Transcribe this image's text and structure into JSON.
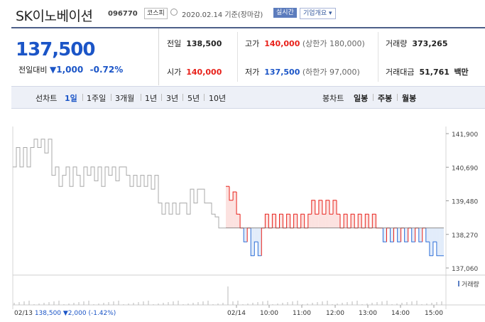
{
  "stock": {
    "name": "SK이노베이션",
    "code": "096770",
    "market": "코스피",
    "date": "2020.02.14 기준(장마감)",
    "live_label": "실시간",
    "corp_info_label": "기업개요 ▾"
  },
  "price": {
    "current": "137,500",
    "change_label": "전일대비",
    "change": "▼1,000",
    "change_pct": "-0.72%"
  },
  "info": {
    "prev_close_label": "전일",
    "prev_close": "138,500",
    "high_label": "고가",
    "high": "140,000",
    "upper_limit": "(상한가 180,000)",
    "volume_label": "거래량",
    "volume": "373,265",
    "open_label": "시가",
    "open": "140,000",
    "low_label": "저가",
    "low": "137,500",
    "lower_limit": "(하한가 97,000)",
    "value_label": "거래대금",
    "value": "51,761",
    "value_unit": "백만"
  },
  "period_tabs": {
    "label": "선차트",
    "items": [
      "1일",
      "1주일",
      "3개월",
      "1년",
      "3년",
      "5년",
      "10년"
    ],
    "active": "1일"
  },
  "candle_tabs": {
    "label": "봉차트",
    "items": [
      "일봉",
      "주봉",
      "월봉"
    ]
  },
  "chart_data": {
    "type": "line",
    "base_price": 138500,
    "ylim": [
      137060,
      141900
    ],
    "y_ticks": [
      "141,900",
      "140,690",
      "139,480",
      "138,270",
      "137,060"
    ],
    "x_ticks": [
      "02/14",
      "10:00",
      "11:00",
      "12:00",
      "13:00",
      "14:00",
      "15:00"
    ],
    "volume_legend": "거래량",
    "prev_day_summary": {
      "date": "02/13",
      "close": "138,500",
      "change": "▼2,000",
      "change_pct": "(-1.42%)"
    },
    "series": [
      {
        "name": "",
        "day": "02/13",
        "values": [
          140700,
          141400,
          140700,
          141400,
          140700,
          141400,
          141700,
          141400,
          141700,
          141200,
          141700,
          140400,
          140700,
          140000,
          140400,
          140700,
          140000,
          140700,
          140400,
          140000,
          140700,
          140400,
          140700,
          140200,
          140700,
          140000,
          140700,
          140400,
          140700,
          140200,
          140700,
          140700,
          140400,
          140000,
          140400,
          140000,
          140400,
          140000,
          140400,
          139900,
          140400,
          139400,
          139000,
          139400,
          139000,
          139400,
          139000,
          139400,
          139400,
          139000,
          139900,
          139400,
          139900,
          139900,
          139400,
          139400,
          139000,
          138900,
          138500,
          138500
        ]
      },
      {
        "name": "",
        "day": "02/14",
        "values": [
          140000,
          139500,
          139800,
          139000,
          138500,
          138000,
          138500,
          137500,
          138000,
          137500,
          138500,
          139000,
          138500,
          139000,
          138500,
          139000,
          138500,
          139000,
          138500,
          139000,
          138500,
          139000,
          138500,
          139000,
          139500,
          139000,
          139500,
          139000,
          139500,
          139000,
          139500,
          139000,
          138500,
          139000,
          138500,
          139000,
          138500,
          139000,
          138500,
          139000,
          138500,
          139000,
          138500,
          138500,
          138000,
          138500,
          138000,
          138500,
          138000,
          138500,
          138000,
          138500,
          138000,
          138500,
          138000,
          138500,
          138000,
          137500,
          138000,
          137500,
          137500
        ]
      }
    ]
  }
}
